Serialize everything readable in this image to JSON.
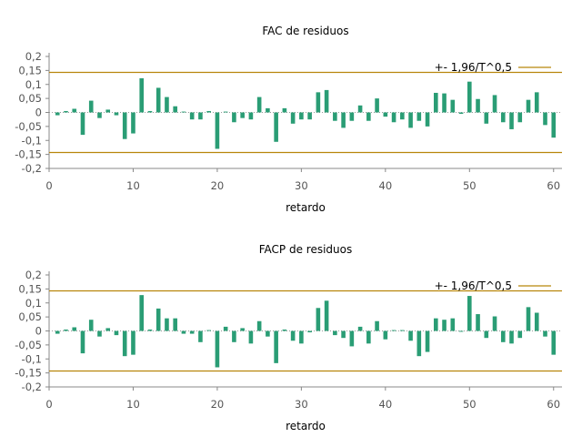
{
  "chart_data": [
    {
      "type": "bar",
      "title": "FAC de residuos",
      "xlabel": "retardo",
      "ylabel": "",
      "x_ticks": [
        0,
        10,
        20,
        30,
        40,
        50,
        60
      ],
      "y_ticks": [
        "0,2",
        "0,15",
        "0,1",
        "0,05",
        "0",
        "-0,05",
        "-0,1",
        "-0,15",
        "-0,2"
      ],
      "y_tick_values": [
        0.2,
        0.15,
        0.1,
        0.05,
        0,
        -0.05,
        -0.1,
        -0.15,
        -0.2
      ],
      "xlim": [
        0,
        61
      ],
      "ylim": [
        -0.2,
        0.2
      ],
      "grid": false,
      "legend_position": "top-right",
      "bar_color": "#2a9d75",
      "band": {
        "label": "+- 1,96/T^0,5",
        "value": 0.143,
        "color": "#b8860b"
      },
      "series": [
        {
          "name": "",
          "x": [
            1,
            2,
            3,
            4,
            5,
            6,
            7,
            8,
            9,
            10,
            11,
            12,
            13,
            14,
            15,
            16,
            17,
            18,
            19,
            20,
            21,
            22,
            23,
            24,
            25,
            26,
            27,
            28,
            29,
            30,
            31,
            32,
            33,
            34,
            35,
            36,
            37,
            38,
            39,
            40,
            41,
            42,
            43,
            44,
            45,
            46,
            47,
            48,
            49,
            50,
            51,
            52,
            53,
            54,
            55,
            56,
            57,
            58,
            59,
            60
          ],
          "values": [
            -0.01,
            0.005,
            0.013,
            -0.08,
            0.042,
            -0.02,
            0.01,
            -0.01,
            -0.095,
            -0.075,
            0.122,
            0.005,
            0.088,
            0.055,
            0.022,
            0.003,
            -0.025,
            -0.025,
            0.005,
            -0.13,
            0.003,
            -0.035,
            -0.02,
            -0.025,
            0.055,
            0.015,
            -0.105,
            0.015,
            -0.04,
            -0.025,
            -0.025,
            0.072,
            0.08,
            -0.03,
            -0.055,
            -0.03,
            0.025,
            -0.03,
            0.05,
            -0.015,
            -0.035,
            -0.025,
            -0.055,
            -0.03,
            -0.05,
            0.07,
            0.068,
            0.045,
            -0.005,
            0.11,
            0.048,
            -0.04,
            0.062,
            -0.035,
            -0.06,
            -0.035,
            0.045,
            0.072,
            -0.045,
            -0.09
          ]
        }
      ]
    },
    {
      "type": "bar",
      "title": "FACP de residuos",
      "xlabel": "retardo",
      "ylabel": "",
      "x_ticks": [
        0,
        10,
        20,
        30,
        40,
        50,
        60
      ],
      "y_ticks": [
        "0,2",
        "0,15",
        "0,1",
        "0,05",
        "0",
        "-0,05",
        "-0,1",
        "-0,15",
        "-0,2"
      ],
      "y_tick_values": [
        0.2,
        0.15,
        0.1,
        0.05,
        0,
        -0.05,
        -0.1,
        -0.15,
        -0.2
      ],
      "xlim": [
        0,
        61
      ],
      "ylim": [
        -0.2,
        0.2
      ],
      "grid": false,
      "legend_position": "top-right",
      "bar_color": "#2a9d75",
      "band": {
        "label": "+- 1,96/T^0,5",
        "value": 0.143,
        "color": "#b8860b"
      },
      "series": [
        {
          "name": "",
          "x": [
            1,
            2,
            3,
            4,
            5,
            6,
            7,
            8,
            9,
            10,
            11,
            12,
            13,
            14,
            15,
            16,
            17,
            18,
            19,
            20,
            21,
            22,
            23,
            24,
            25,
            26,
            27,
            28,
            29,
            30,
            31,
            32,
            33,
            34,
            35,
            36,
            37,
            38,
            39,
            40,
            41,
            42,
            43,
            44,
            45,
            46,
            47,
            48,
            49,
            50,
            51,
            52,
            53,
            54,
            55,
            56,
            57,
            58,
            59,
            60
          ],
          "values": [
            -0.01,
            0.005,
            0.013,
            -0.08,
            0.04,
            -0.02,
            0.01,
            -0.015,
            -0.09,
            -0.085,
            0.128,
            0.005,
            0.08,
            0.045,
            0.045,
            -0.01,
            -0.01,
            -0.04,
            0.003,
            -0.13,
            0.015,
            -0.04,
            0.01,
            -0.045,
            0.035,
            -0.02,
            -0.115,
            0.005,
            -0.035,
            -0.045,
            -0.005,
            0.082,
            0.108,
            -0.015,
            -0.025,
            -0.055,
            0.015,
            -0.045,
            0.035,
            -0.03,
            0.003,
            0.003,
            -0.035,
            -0.09,
            -0.075,
            0.045,
            0.04,
            0.045,
            -0.003,
            0.125,
            0.06,
            -0.025,
            0.052,
            -0.04,
            -0.045,
            -0.025,
            0.085,
            0.065,
            -0.02,
            -0.085
          ]
        }
      ]
    }
  ]
}
